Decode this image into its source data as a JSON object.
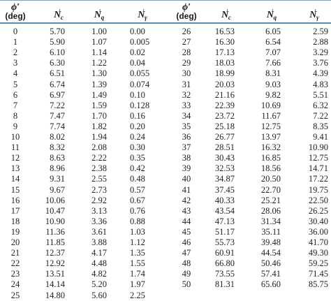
{
  "headers": {
    "phi_symbol": "ϕ′",
    "phi_unit": "(deg)",
    "nc_base": "N",
    "nc_sub": "c",
    "nq_base": "N",
    "nq_sub": "q",
    "ngamma_base": "N",
    "ngamma_sub": "γ",
    "prime": "′"
  },
  "left_rows": [
    [
      "0",
      "5.70",
      "1.00",
      "0.00"
    ],
    [
      "1",
      "5.90",
      "1.07",
      "0.005"
    ],
    [
      "2",
      "6.10",
      "1.14",
      "0.02"
    ],
    [
      "3",
      "6.30",
      "1.22",
      "0.04"
    ],
    [
      "4",
      "6.51",
      "1.30",
      "0.055"
    ],
    [
      "5",
      "6.74",
      "1.39",
      "0.074"
    ],
    [
      "6",
      "6.97",
      "1.49",
      "0.10"
    ],
    [
      "7",
      "7.22",
      "1.59",
      "0.128"
    ],
    [
      "8",
      "7.47",
      "1.70",
      "0.16"
    ],
    [
      "9",
      "7.74",
      "1.82",
      "0.20"
    ],
    [
      "10",
      "8.02",
      "1.94",
      "0.24"
    ],
    [
      "11",
      "8.32",
      "2.08",
      "0.30"
    ],
    [
      "12",
      "8.63",
      "2.22",
      "0.35"
    ],
    [
      "13",
      "8.96",
      "2.38",
      "0.42"
    ],
    [
      "14",
      "9.31",
      "2.55",
      "0.48"
    ],
    [
      "15",
      "9.67",
      "2.73",
      "0.57"
    ],
    [
      "16",
      "10.06",
      "2.92",
      "0.67"
    ],
    [
      "17",
      "10.47",
      "3.13",
      "0.76"
    ],
    [
      "18",
      "10.90",
      "3.36",
      "0.88"
    ],
    [
      "19",
      "11.36",
      "3.61",
      "1.03"
    ],
    [
      "20",
      "11.85",
      "3.88",
      "1.12"
    ],
    [
      "21",
      "12.37",
      "4.17",
      "1.35"
    ],
    [
      "22",
      "12.92",
      "4.48",
      "1.55"
    ],
    [
      "23",
      "13.51",
      "4.82",
      "1.74"
    ],
    [
      "24",
      "14.14",
      "5.20",
      "1.97"
    ],
    [
      "25",
      "14.80",
      "5.60",
      "2.25"
    ]
  ],
  "right_rows": [
    [
      "26",
      "16.53",
      "6.05",
      "2.59"
    ],
    [
      "27",
      "16.30",
      "6.54",
      "2.88"
    ],
    [
      "28",
      "17.13",
      "7.07",
      "3.29"
    ],
    [
      "29",
      "18.03",
      "7.66",
      "3.76"
    ],
    [
      "30",
      "18.99",
      "8.31",
      "4.39"
    ],
    [
      "31",
      "20.03",
      "9.03",
      "4.83"
    ],
    [
      "32",
      "21.16",
      "9.82",
      "5.51"
    ],
    [
      "33",
      "22.39",
      "10.69",
      "6.32"
    ],
    [
      "34",
      "23.72",
      "11.67",
      "7.22"
    ],
    [
      "35",
      "25.18",
      "12.75",
      "8.35"
    ],
    [
      "36",
      "26.77",
      "13.97",
      "9.41"
    ],
    [
      "37",
      "28.51",
      "16.32",
      "10.90"
    ],
    [
      "38",
      "30.43",
      "16.85",
      "12.75"
    ],
    [
      "39",
      "32.53",
      "18.56",
      "14.71"
    ],
    [
      "40",
      "34.87",
      "20.50",
      "17.22"
    ],
    [
      "41",
      "37.45",
      "22.70",
      "19.75"
    ],
    [
      "42",
      "40.33",
      "25.21",
      "22.50"
    ],
    [
      "43",
      "43.54",
      "28.06",
      "26.25"
    ],
    [
      "44",
      "47.13",
      "31.34",
      "30.40"
    ],
    [
      "45",
      "51.17",
      "35.11",
      "36.00"
    ],
    [
      "46",
      "55.73",
      "39.48",
      "41.70"
    ],
    [
      "47",
      "60.91",
      "44.54",
      "49.30"
    ],
    [
      "48",
      "66.80",
      "50.46",
      "59.25"
    ],
    [
      "49",
      "73.55",
      "57.41",
      "71.45"
    ],
    [
      "50",
      "81.31",
      "65.60",
      "85.75"
    ]
  ],
  "colors": {
    "rule": "#5b8fb0",
    "text": "#222222"
  }
}
